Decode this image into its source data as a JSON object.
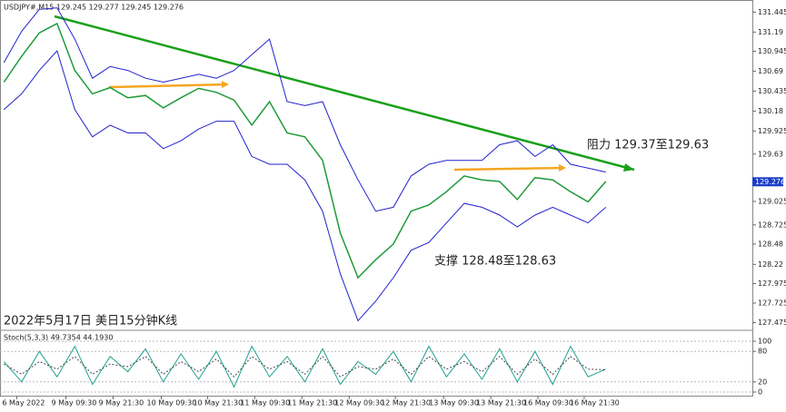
{
  "chart_data": [
    {
      "type": "line",
      "title": "USDJPY#,M15",
      "subtitle": "129.245 129.277 129.245 129.276",
      "annotations": [
        "阻力 129.37至129.63",
        "支撑 128.48至128.63",
        "2022年5月17日 美日15分钟K线"
      ],
      "last_price": 129.276,
      "x": [
        4,
        22,
        40,
        58,
        76,
        94,
        112,
        130,
        148,
        166,
        184,
        202,
        220,
        238,
        256,
        274,
        292,
        310,
        328,
        346,
        364,
        382,
        400,
        418,
        436,
        454,
        472,
        490,
        508,
        526,
        544,
        562,
        580,
        598,
        616
      ],
      "series": [
        {
          "color": "#1e9a3a",
          "values": [
            130.55,
            130.88,
            131.18,
            131.3,
            130.7,
            130.4,
            130.48,
            130.35,
            130.38,
            130.22,
            130.35,
            130.47,
            130.42,
            130.32,
            130.0,
            130.3,
            129.9,
            129.85,
            129.55,
            128.62,
            128.05,
            128.28,
            128.48,
            128.9,
            128.98,
            129.15,
            129.35,
            129.3,
            129.28,
            129.05,
            129.33,
            129.3,
            129.15,
            129.02,
            129.28
          ]
        },
        {
          "color": "#2222cc",
          "values": [
            130.8,
            131.2,
            131.48,
            131.5,
            131.1,
            130.6,
            130.75,
            130.7,
            130.6,
            130.55,
            130.6,
            130.65,
            130.6,
            130.7,
            130.9,
            131.1,
            130.3,
            130.25,
            130.3,
            129.75,
            129.3,
            128.9,
            128.95,
            129.35,
            129.5,
            129.55,
            129.55,
            129.55,
            129.75,
            129.8,
            129.6,
            129.75,
            129.5,
            129.45,
            129.4
          ]
        },
        {
          "color": "#2222cc",
          "values": [
            130.2,
            130.4,
            130.7,
            130.95,
            130.2,
            129.85,
            130.0,
            129.9,
            129.9,
            129.7,
            129.8,
            129.95,
            130.05,
            130.05,
            129.6,
            129.5,
            129.5,
            129.3,
            128.9,
            128.1,
            127.5,
            127.75,
            128.05,
            128.4,
            128.5,
            128.75,
            129.0,
            128.95,
            128.85,
            128.7,
            128.85,
            128.95,
            128.85,
            128.75,
            128.95
          ]
        }
      ],
      "xlim": [
        0,
        765
      ],
      "xticks": [
        {
          "value": 17,
          "label": "6 May 2022"
        },
        {
          "value": 67,
          "label": "9 May 09:30"
        },
        {
          "value": 115,
          "label": "9 May 21:30"
        },
        {
          "value": 164,
          "label": "10 May 09:30"
        },
        {
          "value": 211,
          "label": "10 May 21:30"
        },
        {
          "value": 259,
          "label": "11 May 09:30"
        },
        {
          "value": 307,
          "label": "11 May 21:30"
        },
        {
          "value": 355,
          "label": "12 May 09:30"
        },
        {
          "value": 402,
          "label": "12 May 21:30"
        },
        {
          "value": 451,
          "label": "13 May 09:30"
        },
        {
          "value": 499,
          "label": "13 May 21:30"
        },
        {
          "value": 547,
          "label": "16 May 09:30"
        },
        {
          "value": 594,
          "label": "16 May 21:30"
        }
      ],
      "ylim": [
        127.4,
        131.6
      ],
      "yticks": [
        131.445,
        131.19,
        130.945,
        130.69,
        130.435,
        130.18,
        129.925,
        129.63,
        129.025,
        128.725,
        128.48,
        128.22,
        127.975,
        127.725,
        127.475
      ]
    },
    {
      "type": "line",
      "title": "Stoch(5,3,3) 49.7354 44.1930",
      "series": [
        {
          "color": "#20a090",
          "values": [
            60,
            20,
            80,
            30,
            90,
            15,
            70,
            40,
            85,
            20,
            75,
            25,
            80,
            10,
            90,
            30,
            70,
            20,
            85,
            15,
            60,
            35,
            80,
            20,
            90,
            30,
            75,
            25,
            85,
            20,
            80,
            15,
            90,
            30,
            45
          ]
        },
        {
          "color": "#444444",
          "values": [
            55,
            35,
            60,
            45,
            70,
            35,
            55,
            50,
            70,
            35,
            60,
            40,
            65,
            30,
            70,
            45,
            60,
            35,
            70,
            30,
            50,
            45,
            65,
            35,
            70,
            45,
            60,
            40,
            70,
            35,
            65,
            35,
            70,
            45,
            44
          ]
        }
      ],
      "ylim": [
        0,
        100
      ],
      "yticks": [
        100,
        80,
        20,
        0
      ]
    }
  ]
}
